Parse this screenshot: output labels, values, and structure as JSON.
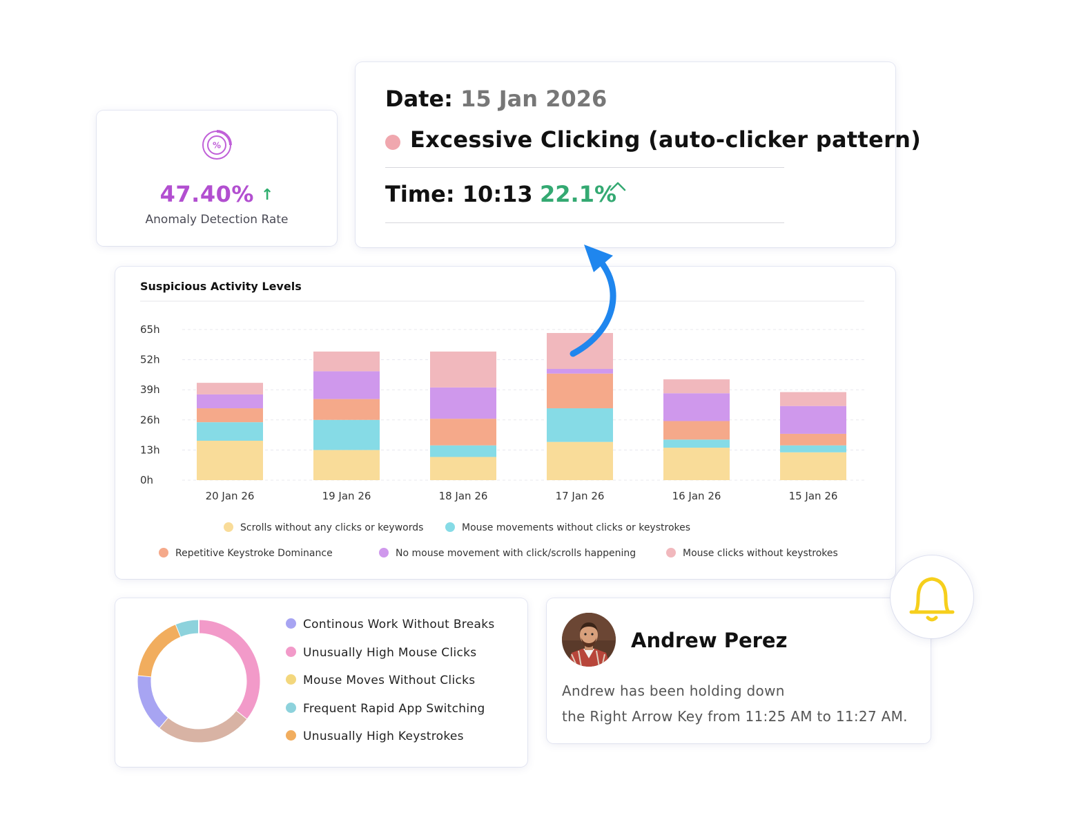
{
  "rate_card": {
    "icon": "percent-pie-icon",
    "value": "47.40%",
    "trend_icon": "arrow-up-icon",
    "trend_glyph": "↑",
    "label": "Anomaly Detection Rate"
  },
  "detail_card": {
    "date_label": "Date:",
    "date_value": "15 Jan 2026",
    "event_title": "Excessive Clicking (auto-clicker pattern)",
    "event_color": "#f0a7ae",
    "time_label": "Time: 10:13",
    "percent": "22.1%",
    "percent_icon": "chevron-up-icon"
  },
  "colors": {
    "scrolls": "#f9dc99",
    "mouse_moves": "#86dbe6",
    "keystroke": "#f5a98a",
    "no_mouse": "#cf98ec",
    "clicks": "#f1b8bd",
    "rate_purple": "#b24fd0",
    "positive_green": "#34a972",
    "arrow_blue": "#1f86ee",
    "bell_yellow": "#f6cf1c"
  },
  "chart_data": {
    "type": "bar",
    "stacked": true,
    "title": "Suspicious Activity Levels",
    "categories": [
      "20 Jan 26",
      "19 Jan 26",
      "18 Jan 26",
      "17 Jan 26",
      "16 Jan 26",
      "15 Jan 26"
    ],
    "y_ticks": [
      "0h",
      "13h",
      "26h",
      "39h",
      "52h",
      "65h"
    ],
    "ylim": [
      0,
      65
    ],
    "grid": true,
    "series": [
      {
        "name": "Scrolls without any clicks or keywords",
        "color": "#f9dc99",
        "values": [
          17,
          13,
          10,
          16.5,
          14,
          12
        ]
      },
      {
        "name": "Mouse movements without clicks or keystrokes",
        "color": "#86dbe6",
        "values": [
          8,
          13,
          5,
          14.5,
          3.5,
          3
        ]
      },
      {
        "name": "Repetitive Keystroke Dominance",
        "color": "#f5a98a",
        "values": [
          6,
          9,
          11.5,
          15,
          8,
          5
        ]
      },
      {
        "name": "No mouse movement with click/scrolls happening",
        "color": "#cf98ec",
        "values": [
          6,
          12,
          13.5,
          2,
          12,
          12
        ]
      },
      {
        "name": "Mouse clicks without keystrokes",
        "color": "#f1b8bd",
        "values": [
          5,
          8.5,
          15.5,
          15.5,
          6,
          6
        ]
      }
    ],
    "legend_position": "bottom"
  },
  "donut": {
    "type": "pie",
    "legend": [
      {
        "label": "Continous Work Without Breaks",
        "color": "#a7a4f2"
      },
      {
        "label": "Unusually High Mouse Clicks",
        "color": "#f29ac9"
      },
      {
        "label": "Mouse Moves Without Clicks",
        "color": "#f3d77d"
      },
      {
        "label": "Frequent Rapid App Switching",
        "color": "#8dd2dc"
      },
      {
        "label": "Unusually High Keystrokes",
        "color": "#f1ad5e"
      }
    ],
    "slices": [
      {
        "color": "#f29ac9",
        "value": 35
      },
      {
        "color": "#d8b3a4",
        "value": 25
      },
      {
        "color": "#a7a4f2",
        "value": 15
      },
      {
        "color": "#f1ad5e",
        "value": 17
      },
      {
        "color": "#8dd2dc",
        "value": 6
      }
    ]
  },
  "person_card": {
    "name": "Andrew Perez",
    "message_line1": "Andrew has been holding down",
    "message_line2": "the Right Arrow Key from 11:25 AM to 11:27 AM.",
    "avatar_icon": "user-avatar"
  },
  "bell": {
    "icon": "bell-icon"
  }
}
